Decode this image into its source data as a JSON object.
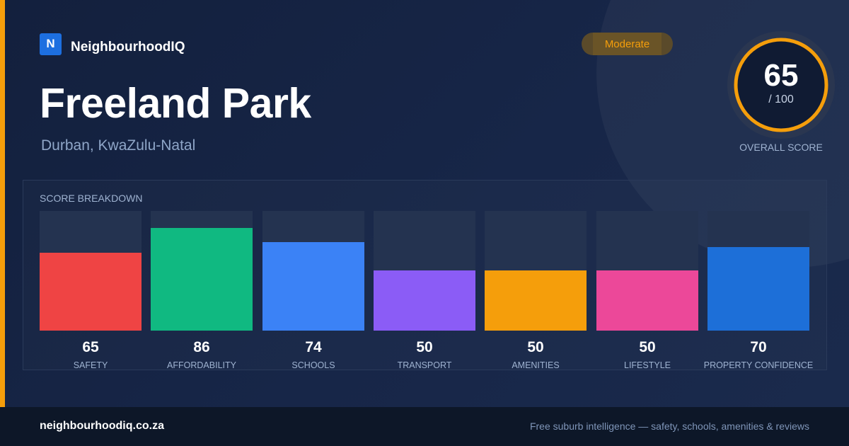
{
  "brand": {
    "logo_letter": "N",
    "name": "NeighbourhoodIQ"
  },
  "suburb": {
    "name": "Freeland Park",
    "location": "Durban, KwaZulu-Natal"
  },
  "rating_badge": "Moderate",
  "overall": {
    "score": "65",
    "out_of": "/ 100",
    "caption": "OVERALL SCORE",
    "fraction": 0.65,
    "ring_color": "#f59e0b"
  },
  "breakdown_title": "SCORE BREAKDOWN",
  "chart_data": {
    "type": "bar",
    "title": "SCORE BREAKDOWN",
    "categories": [
      "SAFETY",
      "AFFORDABILITY",
      "SCHOOLS",
      "TRANSPORT",
      "AMENITIES",
      "LIFESTYLE",
      "PROPERTY CONFIDENCE"
    ],
    "values": [
      65,
      86,
      74,
      50,
      50,
      50,
      70
    ],
    "value_labels": [
      "65",
      "86",
      "74",
      "50",
      "50",
      "50",
      "70"
    ],
    "colors": [
      "#ef4444",
      "#10b981",
      "#3b82f6",
      "#8b5cf6",
      "#f59e0b",
      "#ec4899",
      "#1d6fd8"
    ],
    "ylim": [
      0,
      100
    ],
    "grid": false,
    "legend": "none"
  },
  "footer": {
    "domain": "neighbourhoodiq.co.za",
    "tagline": "Free suburb intelligence — safety, schools, amenities & reviews"
  }
}
